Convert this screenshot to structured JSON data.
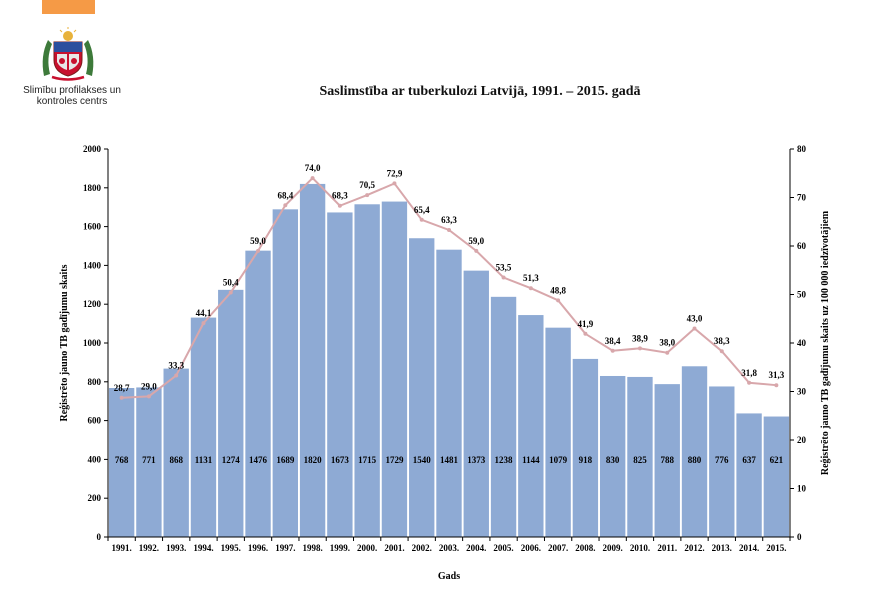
{
  "org": {
    "name_line1": "Slimību profilakses un",
    "name_line2": "kontroles centrs"
  },
  "colors": {
    "accent": "#f59a46",
    "bar": "#8eaad4",
    "line": "#d8a7ab"
  },
  "chart_data": {
    "type": "bar",
    "title": "Saslimstība ar tuberkulozi Latvijā, 1991. – 2015. gadā",
    "xlabel": "Gads",
    "ylabel": "Reģistrēto jauno TB gadījumu skaits",
    "y2label": "Reģistrēto jauno TB gadījumu skaits uz 100 000 iedzīvotājiem",
    "ylim": [
      0,
      2000
    ],
    "yticks": [
      0,
      200,
      400,
      600,
      800,
      1000,
      1200,
      1400,
      1600,
      1800,
      2000
    ],
    "y2lim": [
      0,
      80
    ],
    "y2ticks": [
      0,
      10,
      20,
      30,
      40,
      50,
      60,
      70,
      80
    ],
    "categories": [
      "1991.",
      "1992.",
      "1993.",
      "1994.",
      "1995.",
      "1996.",
      "1997.",
      "1998.",
      "1999.",
      "2000.",
      "2001.",
      "2002.",
      "2003.",
      "2004.",
      "2005.",
      "2006.",
      "2007.",
      "2008.",
      "2009.",
      "2010.",
      "2011.",
      "2012.",
      "2013.",
      "2014.",
      "2015."
    ],
    "series": [
      {
        "name": "Reģistrēto jauno TB gadījumu skaits",
        "type": "bar",
        "axis": "left",
        "values": [
          768,
          771,
          868,
          1131,
          1274,
          1476,
          1689,
          1820,
          1673,
          1715,
          1729,
          1540,
          1481,
          1373,
          1238,
          1144,
          1079,
          918,
          830,
          825,
          788,
          880,
          776,
          637,
          621
        ]
      },
      {
        "name": "Reģistrēto jauno TB gadījumu skaits uz 100 000 iedzīvotājiem",
        "type": "line",
        "axis": "right",
        "values": [
          28.7,
          29.0,
          33.3,
          44.1,
          50.4,
          59.0,
          68.4,
          74.0,
          68.3,
          70.5,
          72.9,
          65.4,
          63.3,
          59.0,
          53.5,
          51.3,
          48.8,
          41.9,
          38.4,
          38.9,
          38.0,
          43.0,
          38.3,
          31.8,
          31.3
        ],
        "labels": [
          "28,7",
          "29,0",
          "33,3",
          "44,1",
          "50,4",
          "59,0",
          "68,4",
          "74,0",
          "68,3",
          "70,5",
          "72,9",
          "65,4",
          "63,3",
          "59,0",
          "53,5",
          "51,3",
          "48,8",
          "41,9",
          "38,4",
          "38,9",
          "38,0",
          "43,0",
          "38,3",
          "31,8",
          "31,3"
        ]
      }
    ]
  }
}
